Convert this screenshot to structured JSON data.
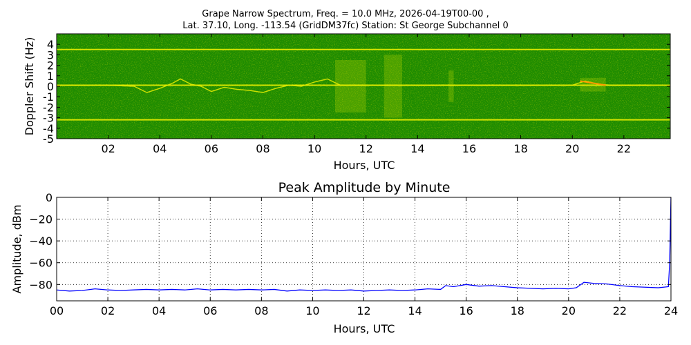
{
  "figure": {
    "title_line1": "Grape Narrow Spectrum, Freq. = 10.0 MHz, 2026-04-19T00-00 ,",
    "title_line2": "Lat.  37.10, Long. -113.54 (GridDM37fc) Station: St George Subchannel 0"
  },
  "colors": {
    "spectrogram_background": "#1f8c00",
    "spectrogram_line": "#e8ef00",
    "spectrogram_hot": "#ff9a00",
    "amplitude_line": "#0000ff",
    "grid": "#000000"
  },
  "chart_data": [
    {
      "type": "heatmap",
      "title": "",
      "xlabel": "Hours, UTC",
      "ylabel": "Doppler Shift (Hz)",
      "xlim": [
        0,
        23.8
      ],
      "ylim": [
        -5,
        5
      ],
      "x_ticks": [
        "02",
        "04",
        "06",
        "08",
        "10",
        "12",
        "14",
        "16",
        "18",
        "20",
        "22"
      ],
      "x_tick_values": [
        2,
        4,
        6,
        8,
        10,
        12,
        14,
        16,
        18,
        20,
        22
      ],
      "y_ticks": [
        "4",
        "3",
        "2",
        "1",
        "0",
        "-1",
        "-2",
        "-3",
        "-4",
        "-5"
      ],
      "y_tick_values": [
        4,
        3,
        2,
        1,
        0,
        -1,
        -2,
        -3,
        -4,
        -5
      ],
      "horizontal_lines_hz": [
        3.5,
        0.1,
        -3.2
      ],
      "doppler_trace": {
        "x": [
          0,
          1,
          2,
          3,
          3.5,
          4,
          4.5,
          4.8,
          5.2,
          5.6,
          6,
          6.5,
          7,
          7.5,
          8,
          8.5,
          9,
          9.5,
          10,
          10.5,
          11,
          12,
          13,
          14,
          15,
          16,
          17,
          18,
          19,
          20,
          20.5,
          21,
          21.5,
          22,
          23
        ],
        "y": [
          0.1,
          0.1,
          0.1,
          0.0,
          -0.6,
          -0.2,
          0.3,
          0.7,
          0.2,
          0.0,
          -0.5,
          -0.1,
          -0.3,
          -0.4,
          -0.6,
          -0.2,
          0.1,
          0.0,
          0.4,
          0.7,
          0.1,
          0.1,
          0.1,
          0.1,
          0.1,
          0.1,
          0.1,
          0.1,
          0.1,
          0.1,
          0.5,
          0.2,
          0.1,
          0.1,
          0.1
        ]
      },
      "disturbance_bands": [
        {
          "x": [
            10.8,
            12.0
          ],
          "y": [
            -2.5,
            2.5
          ]
        },
        {
          "x": [
            12.7,
            13.4
          ],
          "y": [
            -3.0,
            3.0
          ]
        },
        {
          "x": [
            15.2,
            15.4
          ],
          "y": [
            -1.5,
            1.5
          ]
        },
        {
          "x": [
            20.3,
            21.3
          ],
          "y": [
            -0.5,
            0.8
          ]
        }
      ],
      "grid": false
    },
    {
      "type": "line",
      "title": "Peak Amplitude by Minute",
      "xlabel": "Hours, UTC",
      "ylabel": "Amplitude, dBm",
      "xlim": [
        0,
        24
      ],
      "ylim": [
        -95,
        0
      ],
      "x_ticks": [
        "00",
        "02",
        "04",
        "06",
        "08",
        "10",
        "12",
        "14",
        "16",
        "18",
        "20",
        "22",
        "24"
      ],
      "x_tick_values": [
        0,
        2,
        4,
        6,
        8,
        10,
        12,
        14,
        16,
        18,
        20,
        22,
        24
      ],
      "y_ticks": [
        "0",
        "−20",
        "−40",
        "−60",
        "−80"
      ],
      "y_tick_values": [
        0,
        -20,
        -40,
        -60,
        -80
      ],
      "grid": true,
      "series": [
        {
          "x": [
            0,
            0.5,
            1,
            1.5,
            2,
            2.5,
            3,
            3.5,
            4,
            4.5,
            5,
            5.5,
            6,
            6.5,
            7,
            7.5,
            8,
            8.5,
            9,
            9.5,
            10,
            10.5,
            11,
            11.5,
            12,
            12.5,
            13,
            13.5,
            14,
            14.5,
            15,
            15.2,
            15.5,
            16,
            16.5,
            17,
            17.5,
            18,
            18.5,
            19,
            19.5,
            20,
            20.3,
            20.6,
            21,
            21.5,
            22,
            22.5,
            23,
            23.5,
            23.9,
            23.95,
            24
          ],
          "y": [
            -85,
            -86,
            -85.5,
            -84,
            -85,
            -85.5,
            -85,
            -84.5,
            -85,
            -84.5,
            -85,
            -84,
            -85,
            -84.5,
            -85,
            -84.5,
            -85,
            -84.5,
            -86,
            -85,
            -85.5,
            -85,
            -85.5,
            -85,
            -86,
            -85.5,
            -85,
            -85.5,
            -85,
            -84,
            -84.5,
            -81,
            -82,
            -80,
            -81.5,
            -81,
            -82,
            -83,
            -83.5,
            -84,
            -83.5,
            -84,
            -83,
            -78,
            -79,
            -79.5,
            -81,
            -82,
            -82.5,
            -83,
            -82,
            -60,
            0
          ]
        }
      ]
    }
  ]
}
